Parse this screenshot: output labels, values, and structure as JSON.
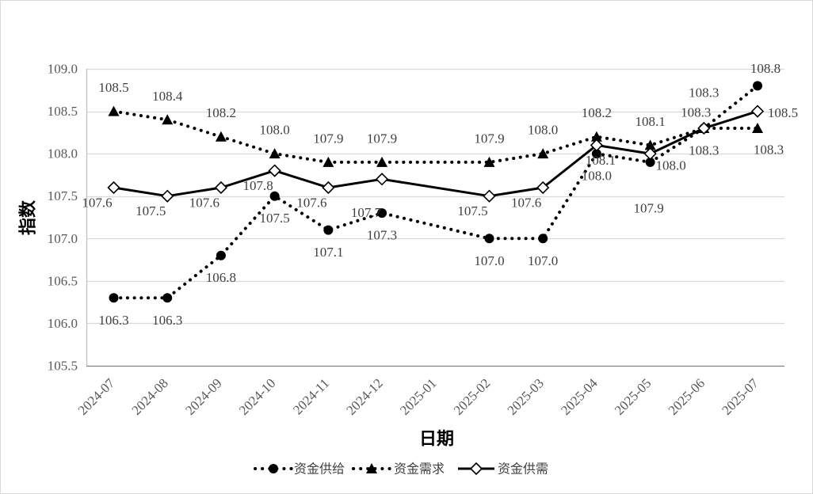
{
  "chart_data": {
    "type": "line",
    "xlabel": "日期",
    "ylabel": "指数",
    "ylim": [
      105.5,
      109.0
    ],
    "y_ticks": [
      "105.5",
      "106.0",
      "106.5",
      "107.0",
      "107.5",
      "108.0",
      "108.5",
      "109.0"
    ],
    "x_ticks": [
      "2024-07",
      "2024-08",
      "2024-09",
      "2024-10",
      "2024-11",
      "2024-12",
      "2025-01",
      "2025-02",
      "2025-03",
      "2025-04",
      "2025-05",
      "2025-06",
      "2025-07"
    ],
    "x": [
      "2024-07",
      "2024-08",
      "2024-09",
      "2024-10",
      "2024-11",
      "2024-12",
      "2025-02",
      "2025-03",
      "2025-04",
      "2025-05",
      "2025-06",
      "2025-07"
    ],
    "series": [
      {
        "name": "资金供给",
        "values": [
          106.3,
          106.3,
          106.8,
          107.5,
          107.1,
          107.3,
          107.0,
          107.0,
          108.0,
          107.9,
          108.3,
          108.8
        ],
        "line_style": "dotted",
        "marker": "circle",
        "color": "#000000"
      },
      {
        "name": "资金需求",
        "values": [
          108.5,
          108.4,
          108.2,
          108.0,
          107.9,
          107.9,
          107.9,
          108.0,
          108.2,
          108.1,
          108.3,
          108.3
        ],
        "line_style": "dotted",
        "marker": "triangle",
        "color": "#000000"
      },
      {
        "name": "资金供需",
        "values": [
          107.6,
          107.5,
          107.6,
          107.8,
          107.6,
          107.7,
          107.5,
          107.6,
          108.1,
          108.0,
          108.3,
          108.5
        ],
        "line_style": "solid",
        "marker": "diamond",
        "color": "#000000"
      }
    ],
    "data_labels": true,
    "grid": true,
    "legend": "bottom"
  }
}
